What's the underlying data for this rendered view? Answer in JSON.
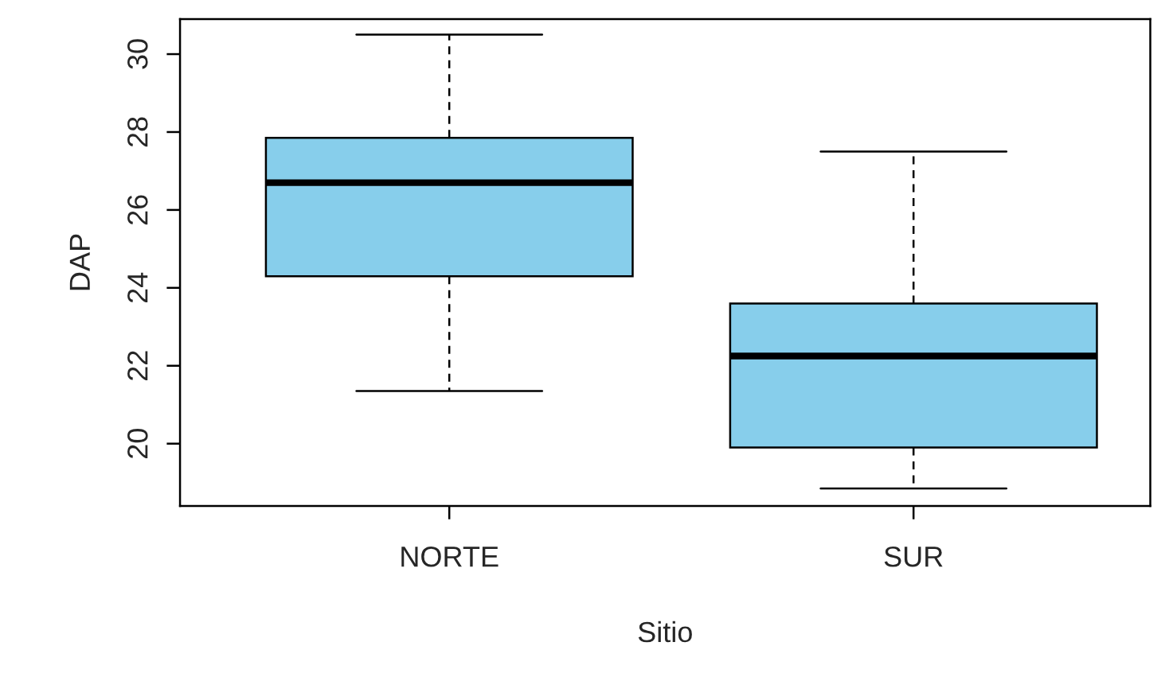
{
  "chart_data": {
    "type": "box",
    "xlabel": "Sitio",
    "ylabel": "DAP",
    "categories": [
      "NORTE",
      "SUR"
    ],
    "color": "#87ceeb",
    "boxes": [
      {
        "low": 21.35,
        "q1": 24.3,
        "median": 26.7,
        "q3": 27.85,
        "high": 30.5
      },
      {
        "low": 18.85,
        "q1": 19.9,
        "median": 22.25,
        "q3": 23.6,
        "high": 27.5
      }
    ],
    "ylim": [
      18.4,
      30.9
    ],
    "yticks": [
      20,
      22,
      24,
      26,
      28,
      30
    ]
  }
}
